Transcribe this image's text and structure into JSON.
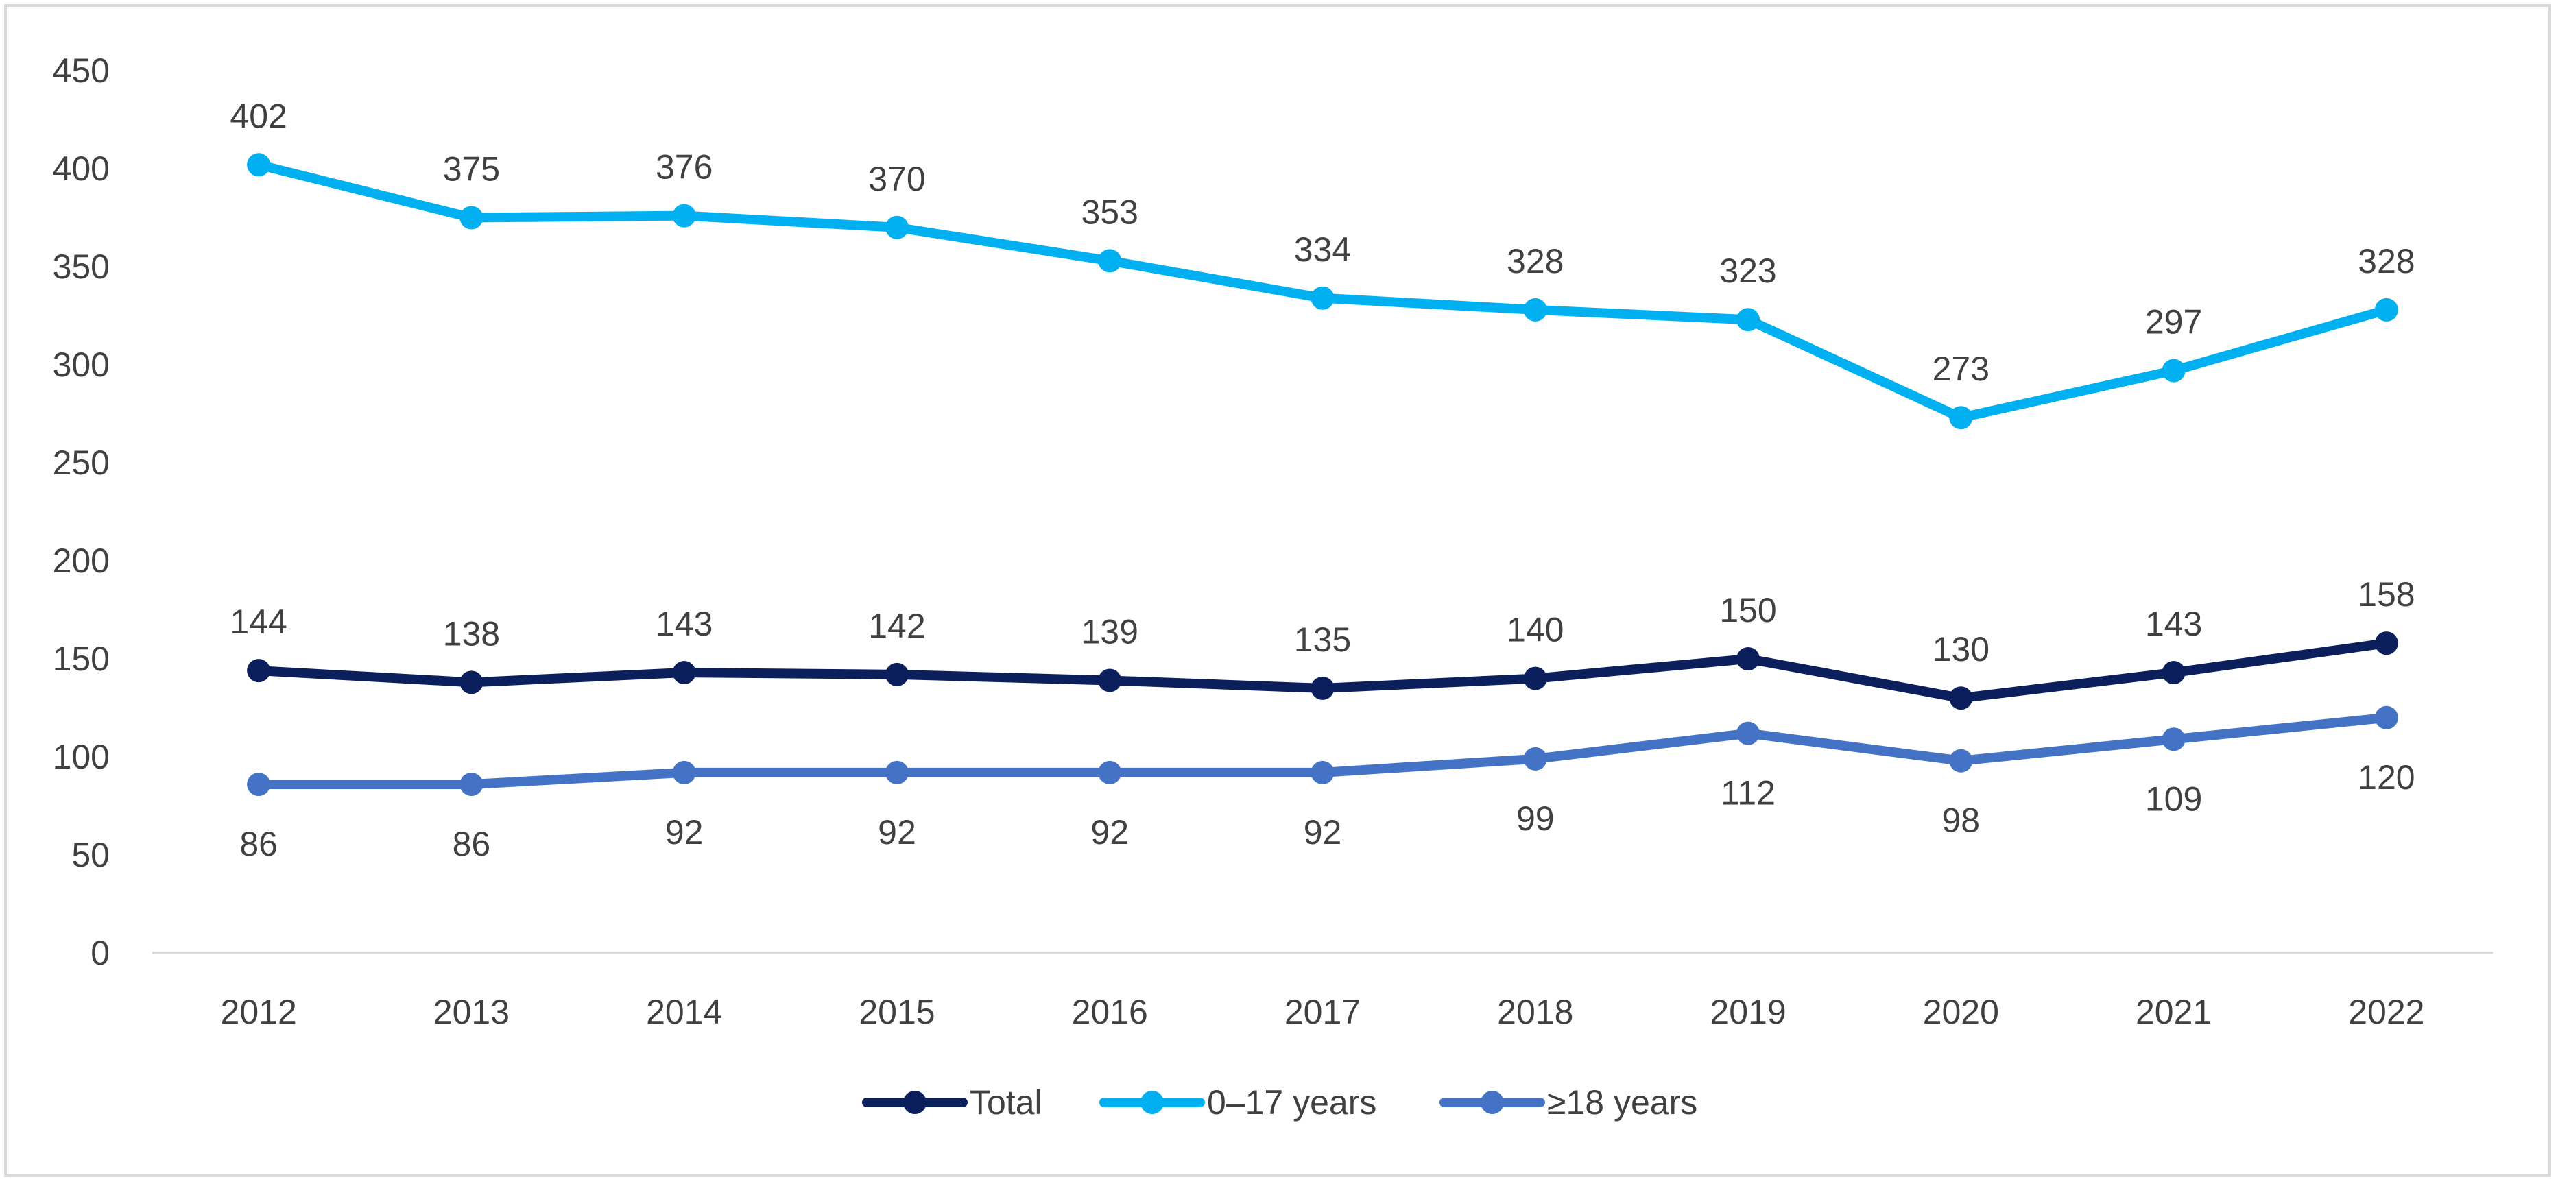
{
  "chart_data": {
    "type": "line",
    "title": "",
    "xlabel": "",
    "ylabel": "",
    "categories": [
      "2012",
      "2013",
      "2014",
      "2015",
      "2016",
      "2017",
      "2018",
      "2019",
      "2020",
      "2021",
      "2022"
    ],
    "ylim": [
      0,
      450
    ],
    "yticks": [
      0,
      50,
      100,
      150,
      200,
      250,
      300,
      350,
      400,
      450
    ],
    "grid": false,
    "legend_position": "bottom",
    "series": [
      {
        "name": "Total",
        "color": "#0b1f5c",
        "label_position": "above",
        "values": [
          144,
          138,
          143,
          142,
          139,
          135,
          140,
          150,
          130,
          143,
          158
        ]
      },
      {
        "name": "0–17 years",
        "color": "#00b0f0",
        "label_position": "above",
        "values": [
          402,
          375,
          376,
          370,
          353,
          334,
          328,
          323,
          273,
          297,
          328
        ]
      },
      {
        "name": "≥18 years",
        "color": "#4472c4",
        "label_position": "below",
        "values": [
          86,
          86,
          92,
          92,
          92,
          92,
          99,
          112,
          98,
          109,
          120
        ]
      }
    ],
    "axis_color": "#d9d9d9"
  }
}
